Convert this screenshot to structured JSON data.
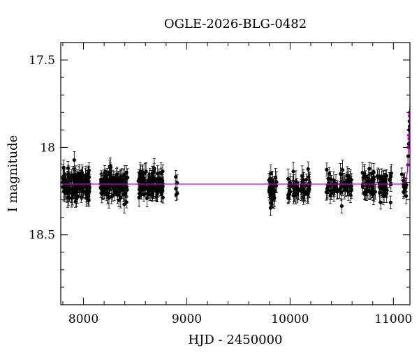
{
  "chart_data": {
    "type": "scatter",
    "title": "OGLE-2026-BLG-0482",
    "xlabel": "HJD - 2450000",
    "ylabel": "I magnitude",
    "xlim": [
      7780,
      11160
    ],
    "ylim": [
      18.9,
      17.4
    ],
    "y_inverted": true,
    "grid": false,
    "x_ticks": [
      8000,
      9000,
      10000,
      11000
    ],
    "y_ticks": [
      17.5,
      18,
      18.5
    ],
    "y_tick_labels": [
      "17.5",
      "18",
      "18.5"
    ],
    "colors": {
      "points": "#000000",
      "model": "#cc00cc"
    },
    "model": {
      "baseline_mag": 18.21,
      "x": [
        7780,
        11080,
        11110,
        11125,
        11135,
        11142,
        11148,
        11152,
        11156,
        11160
      ],
      "y": [
        18.21,
        18.21,
        18.2,
        18.18,
        18.14,
        18.07,
        17.98,
        17.9,
        17.84,
        17.8
      ]
    },
    "seasons": [
      {
        "x_start": 7800,
        "x_end": 8060,
        "n": 140,
        "mean": 18.21,
        "scatter": 0.07,
        "err": 0.05
      },
      {
        "x_start": 8160,
        "x_end": 8430,
        "n": 120,
        "mean": 18.21,
        "scatter": 0.07,
        "err": 0.05
      },
      {
        "x_start": 8530,
        "x_end": 8770,
        "n": 120,
        "mean": 18.21,
        "scatter": 0.07,
        "err": 0.05
      },
      {
        "x_start": 8890,
        "x_end": 8910,
        "n": 5,
        "mean": 18.24,
        "scatter": 0.07,
        "err": 0.05
      },
      {
        "x_start": 9790,
        "x_end": 9870,
        "n": 40,
        "mean": 18.24,
        "scatter": 0.08,
        "err": 0.05
      },
      {
        "x_start": 9980,
        "x_end": 10190,
        "n": 60,
        "mean": 18.24,
        "scatter": 0.07,
        "err": 0.05
      },
      {
        "x_start": 10350,
        "x_end": 10600,
        "n": 60,
        "mean": 18.22,
        "scatter": 0.07,
        "err": 0.05
      },
      {
        "x_start": 10700,
        "x_end": 10980,
        "n": 80,
        "mean": 18.21,
        "scatter": 0.07,
        "err": 0.05
      },
      {
        "x_start": 11080,
        "x_end": 11130,
        "n": 12,
        "mean": 18.22,
        "scatter": 0.05,
        "err": 0.05
      }
    ],
    "event_points": {
      "x": [
        11140,
        11143,
        11146,
        11148,
        11150,
        11152,
        11153,
        11155,
        11156,
        11157,
        11158
      ],
      "y": [
        18.1,
        18.05,
        18.0,
        17.98,
        17.93,
        17.9,
        17.95,
        17.85,
        17.82,
        17.88,
        17.8
      ]
    }
  }
}
